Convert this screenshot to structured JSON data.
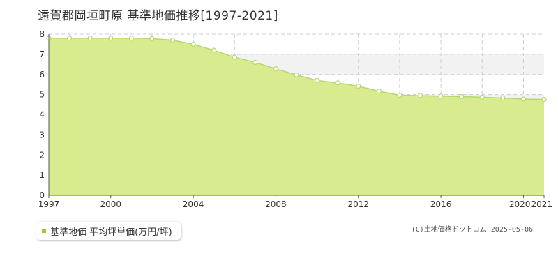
{
  "title": "遠賀郡岡垣町原 基準地価推移[1997-2021]",
  "legend": {
    "label": "基準地価 平均坪単価(万円/坪)",
    "swatch_color": "#9acd32"
  },
  "copyright": "(C)土地価格ドットコム 2025-05-06",
  "colors": {
    "area_fill": "#d8eb8f",
    "line": "#b5d86a",
    "marker_fill": "#ffffff",
    "grid": "#cccccc",
    "band": "#f2f2f2"
  },
  "chart_data": {
    "type": "area",
    "title": "遠賀郡岡垣町原 基準地価推移[1997-2021]",
    "xlabel": "",
    "ylabel": "",
    "x": [
      1997,
      1998,
      1999,
      2000,
      2001,
      2002,
      2003,
      2004,
      2005,
      2006,
      2007,
      2008,
      2009,
      2010,
      2011,
      2012,
      2013,
      2014,
      2015,
      2016,
      2017,
      2018,
      2019,
      2020,
      2021
    ],
    "series": [
      {
        "name": "基準地価 平均坪単価(万円/坪)",
        "values": [
          7.8,
          7.8,
          7.8,
          7.8,
          7.8,
          7.78,
          7.7,
          7.5,
          7.2,
          6.85,
          6.6,
          6.28,
          5.98,
          5.7,
          5.58,
          5.42,
          5.17,
          4.97,
          4.95,
          4.92,
          4.9,
          4.87,
          4.83,
          4.78,
          4.76
        ]
      }
    ],
    "xticks": [
      "1997",
      "2000",
      "2004",
      "2008",
      "2012",
      "2016",
      "2020",
      "2021"
    ],
    "yticks": [
      "0",
      "1",
      "2",
      "3",
      "4",
      "5",
      "6",
      "7",
      "8"
    ],
    "xlim": [
      1997,
      2021
    ],
    "ylim": [
      0,
      8
    ],
    "grid": true,
    "legend_position": "bottom-left"
  }
}
